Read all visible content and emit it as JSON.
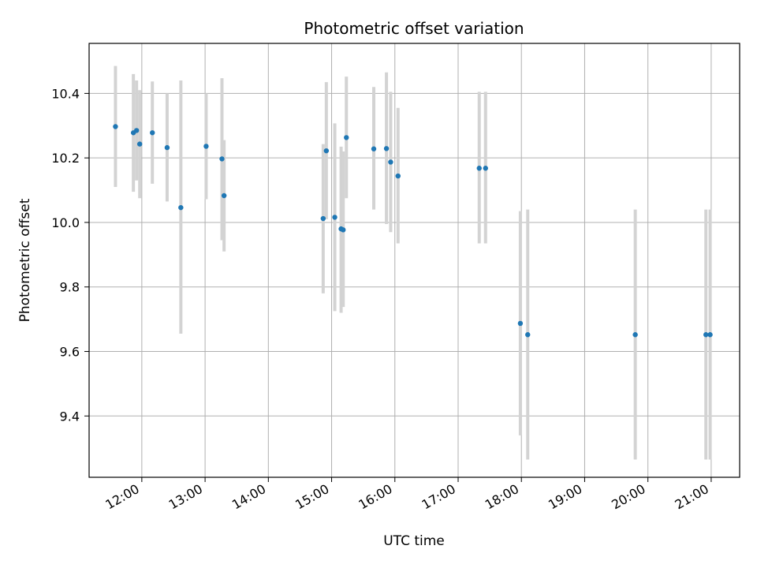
{
  "chart_data": {
    "type": "scatter",
    "title": "Photometric offset variation",
    "xlabel": "UTC time",
    "ylabel": "Photometric offset",
    "xlim": [
      "11:10",
      "21:27"
    ],
    "ylim": [
      9.21,
      10.555
    ],
    "x_ticks": [
      "12:00",
      "13:00",
      "14:00",
      "15:00",
      "16:00",
      "17:00",
      "18:00",
      "19:00",
      "20:00",
      "21:00"
    ],
    "y_ticks": [
      9.4,
      9.6,
      9.8,
      10.0,
      10.2,
      10.4
    ],
    "y_tick_labels": [
      "9.4",
      "9.6",
      "9.8",
      "10.0",
      "10.2",
      "10.4"
    ],
    "grid": true,
    "point_color": "#1f77b4",
    "errorbar_color": "#d3d3d3",
    "points": [
      {
        "t": "11:35",
        "y": 10.297,
        "lo": 10.11,
        "hi": 10.485
      },
      {
        "t": "11:52",
        "y": 10.278,
        "lo": 10.095,
        "hi": 10.46
      },
      {
        "t": "11:55",
        "y": 10.285,
        "lo": 10.13,
        "hi": 10.44
      },
      {
        "t": "11:58",
        "y": 10.243,
        "lo": 10.075,
        "hi": 10.41
      },
      {
        "t": "12:10",
        "y": 10.278,
        "lo": 10.12,
        "hi": 10.437
      },
      {
        "t": "12:24",
        "y": 10.232,
        "lo": 10.065,
        "hi": 10.4
      },
      {
        "t": "12:37",
        "y": 10.046,
        "lo": 9.655,
        "hi": 10.44
      },
      {
        "t": "13:01",
        "y": 10.236,
        "lo": 10.072,
        "hi": 10.4
      },
      {
        "t": "13:16",
        "y": 10.197,
        "lo": 9.945,
        "hi": 10.447
      },
      {
        "t": "13:18",
        "y": 10.083,
        "lo": 9.91,
        "hi": 10.255
      },
      {
        "t": "14:52",
        "y": 10.012,
        "lo": 9.78,
        "hi": 10.243
      },
      {
        "t": "14:55",
        "y": 10.222,
        "lo": 10.01,
        "hi": 10.435
      },
      {
        "t": "15:03",
        "y": 10.016,
        "lo": 9.725,
        "hi": 10.307
      },
      {
        "t": "15:09",
        "y": 9.98,
        "lo": 9.72,
        "hi": 10.235
      },
      {
        "t": "15:11",
        "y": 9.977,
        "lo": 9.738,
        "hi": 10.22
      },
      {
        "t": "15:14",
        "y": 10.263,
        "lo": 10.075,
        "hi": 10.452
      },
      {
        "t": "15:40",
        "y": 10.228,
        "lo": 10.04,
        "hi": 10.42
      },
      {
        "t": "15:52",
        "y": 10.229,
        "lo": 9.995,
        "hi": 10.465
      },
      {
        "t": "15:56",
        "y": 10.187,
        "lo": 9.97,
        "hi": 10.405
      },
      {
        "t": "16:03",
        "y": 10.144,
        "lo": 9.935,
        "hi": 10.355
      },
      {
        "t": "17:20",
        "y": 10.168,
        "lo": 9.935,
        "hi": 10.405
      },
      {
        "t": "17:26",
        "y": 10.168,
        "lo": 9.935,
        "hi": 10.405
      },
      {
        "t": "17:59",
        "y": 9.687,
        "lo": 9.34,
        "hi": 10.035
      },
      {
        "t": "18:06",
        "y": 9.652,
        "lo": 9.265,
        "hi": 10.04
      },
      {
        "t": "19:48",
        "y": 9.652,
        "lo": 9.265,
        "hi": 10.04
      },
      {
        "t": "20:55",
        "y": 9.652,
        "lo": 9.265,
        "hi": 10.04
      },
      {
        "t": "20:59",
        "y": 9.652,
        "lo": 9.265,
        "hi": 10.04
      }
    ]
  }
}
